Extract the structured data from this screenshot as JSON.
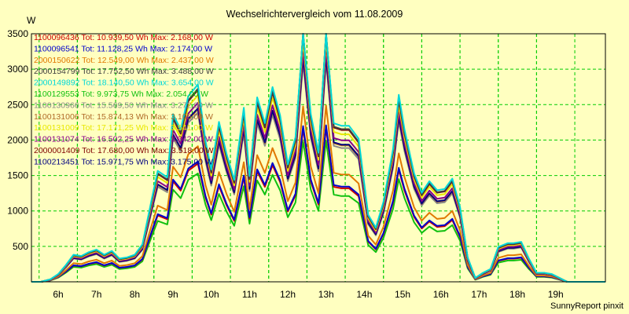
{
  "chart_data": {
    "type": "line",
    "title": "Wechselrichtervergleich vom 11.08.2009",
    "ylabel": "W",
    "footer": "SunnyReport pinxit",
    "ylim": [
      0,
      3500
    ],
    "xlim": [
      5.3,
      20.3
    ],
    "y_ticks": [
      500,
      1000,
      1500,
      2000,
      2500,
      3000,
      3500
    ],
    "x_ticks": [
      {
        "v": 6.0,
        "label": "6h"
      },
      {
        "v": 7.0,
        "label": "7h"
      },
      {
        "v": 8.0,
        "label": "8h"
      },
      {
        "v": 9.0,
        "label": "9h"
      },
      {
        "v": 10.0,
        "label": "10h"
      },
      {
        "v": 11.0,
        "label": "11h"
      },
      {
        "v": 12.0,
        "label": "12h"
      },
      {
        "v": 13.0,
        "label": "13h"
      },
      {
        "v": 14.0,
        "label": "14h"
      },
      {
        "v": 15.0,
        "label": "15h"
      },
      {
        "v": 16.0,
        "label": "16h"
      },
      {
        "v": 17.0,
        "label": "17h"
      },
      {
        "v": 18.0,
        "label": "18h"
      },
      {
        "v": 19.0,
        "label": "19h"
      }
    ],
    "grid": true,
    "legend_position": "top-left inside",
    "x": [
      5.3,
      5.55,
      5.8,
      6.0,
      6.2,
      6.4,
      6.6,
      6.8,
      7.0,
      7.2,
      7.4,
      7.6,
      7.8,
      8.0,
      8.2,
      8.45,
      8.6,
      8.85,
      9.0,
      9.2,
      9.4,
      9.65,
      9.85,
      10.0,
      10.2,
      10.4,
      10.6,
      10.85,
      11.0,
      11.2,
      11.4,
      11.6,
      11.8,
      12.0,
      12.2,
      12.4,
      12.6,
      12.8,
      13.0,
      13.2,
      13.4,
      13.6,
      13.85,
      14.1,
      14.3,
      14.5,
      14.75,
      14.9,
      15.05,
      15.3,
      15.5,
      15.7,
      15.9,
      16.1,
      16.3,
      16.5,
      16.7,
      16.9,
      17.1,
      17.3,
      17.5,
      17.75,
      17.9,
      18.1,
      18.3,
      18.5,
      18.7,
      18.9,
      19.1,
      19.3,
      19.55,
      19.8,
      20.05,
      20.3
    ],
    "base": [
      0,
      0,
      20,
      60,
      130,
      210,
      200,
      230,
      250,
      210,
      240,
      180,
      190,
      210,
      290,
      650,
      860,
      810,
      1300,
      1180,
      1440,
      1530,
      1090,
      870,
      1240,
      990,
      790,
      1350,
      820,
      1430,
      1230,
      1510,
      1290,
      910,
      1120,
      1980,
      1300,
      1000,
      1990,
      1230,
      1210,
      1210,
      1110,
      520,
      420,
      620,
      1030,
      1450,
      1180,
      840,
      690,
      780,
      710,
      720,
      800,
      580,
      190,
      30,
      70,
      100,
      270,
      300,
      300,
      310,
      180,
      70,
      70,
      60,
      30,
      0,
      0,
      0,
      0,
      0
    ],
    "series": [
      {
        "name": "1100096436 Tot: 10.939,50 Wh Max: 2.168,00 W",
        "color": "#cc0000",
        "factor": 1.09
      },
      {
        "name": "1100096541 Tot: 11.128,25 Wh Max: 2.174,00 W",
        "color": "#0000cc",
        "factor": 1.11
      },
      {
        "name": "2000150622 Tot: 12.549,00 Wh Max: 2.437,00 W",
        "color": "#e07800",
        "factor": 1.25
      },
      {
        "name": "2000154799 Tot: 17.752,50 Wh Max: 3.488,00 W",
        "color": "#404040",
        "factor": 1.78
      },
      {
        "name": "2000149892 Tot: 18.140,50 Wh Max: 3.654,00 W",
        "color": "#00d8d8",
        "factor": 1.82
      },
      {
        "name": "1100129553 Tot: 9.973,75 Wh Max: 2.054,00 W",
        "color": "#10c010",
        "factor": 1.0
      },
      {
        "name": "1100130966 Tot: 15.569,50 Wh Max: 3.272,00 W",
        "color": "#8a8a8a",
        "factor": 1.56
      },
      {
        "name": "1100131006 Tot: 15.874,13 Wh Max: 3.105,00 W",
        "color": "#b06a28",
        "factor": 1.59
      },
      {
        "name": "1100131009 Tot: 17.171,25 Wh Max: 3.541,00 W",
        "color": "#e8e800",
        "factor": 1.72
      },
      {
        "name": "1100131074 Tot: 16.502,25 Wh Max: 3.342,00 W",
        "color": "#880088",
        "factor": 1.65
      },
      {
        "name": "2000001409 Tot: 17.680,00 Wh Max: 3.518,00 W",
        "color": "#800000",
        "factor": 1.77
      },
      {
        "name": "1100213451 Tot: 15.971,75 Wh Max: 3.175,00 W",
        "color": "#000080",
        "factor": 1.6
      }
    ]
  }
}
